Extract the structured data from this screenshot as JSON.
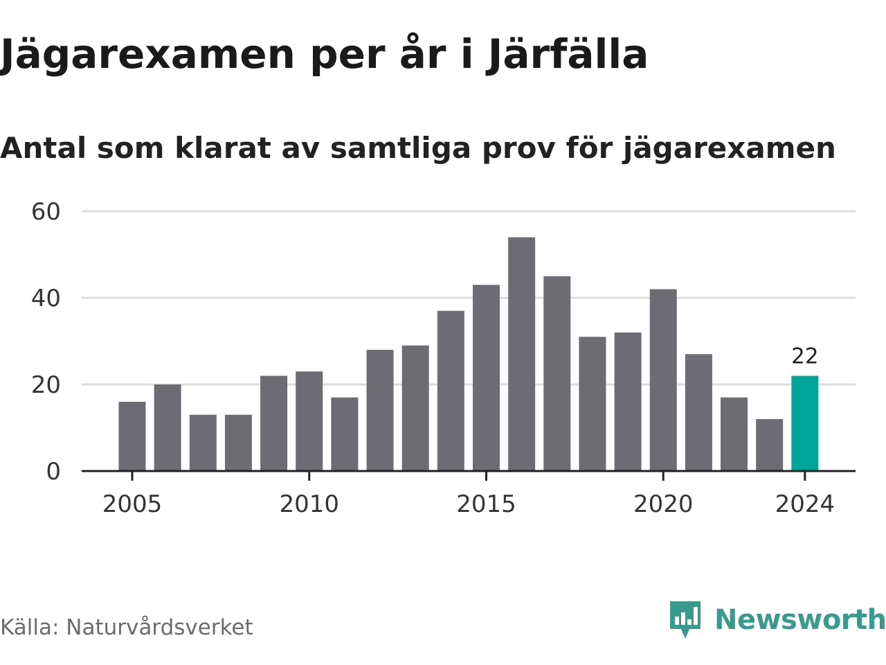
{
  "header": {
    "title": "Jägarexamen per år i Järfälla",
    "subtitle": "Antal som klarat av samtliga prov för jägarexamen"
  },
  "footer": {
    "source": "Källa: Naturvårdsverket",
    "brand": "Newsworthy"
  },
  "colors": {
    "bar": "#6d6c72",
    "highlight": "#00a59a",
    "grid": "#dcdcdc",
    "axis": "#222222",
    "brand": "#3a9a8e"
  },
  "chart_data": {
    "type": "bar",
    "title": "Jägarexamen per år i Järfälla",
    "subtitle": "Antal som klarat av samtliga prov för jägarexamen",
    "xlabel": "",
    "ylabel": "",
    "categories": [
      2005,
      2006,
      2007,
      2008,
      2009,
      2010,
      2011,
      2012,
      2013,
      2014,
      2015,
      2016,
      2017,
      2018,
      2019,
      2020,
      2021,
      2022,
      2023,
      2024
    ],
    "values": [
      16,
      20,
      13,
      13,
      22,
      23,
      17,
      28,
      29,
      37,
      43,
      54,
      45,
      31,
      32,
      42,
      27,
      17,
      12,
      22
    ],
    "x_ticks": [
      "2005",
      "2010",
      "2015",
      "2020",
      "2024"
    ],
    "y_ticks": [
      0,
      20,
      40,
      60
    ],
    "ylim": [
      0,
      60
    ],
    "grid": true,
    "highlight": {
      "category": 2024,
      "label": "22"
    }
  }
}
